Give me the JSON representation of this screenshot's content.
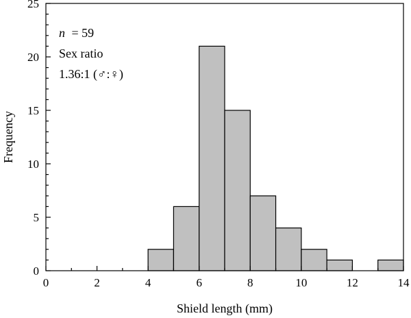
{
  "chart_data": {
    "type": "bar",
    "bins": [
      {
        "x0": 4,
        "x1": 5,
        "count": 2
      },
      {
        "x0": 5,
        "x1": 6,
        "count": 6
      },
      {
        "x0": 6,
        "x1": 7,
        "count": 21
      },
      {
        "x0": 7,
        "x1": 8,
        "count": 15
      },
      {
        "x0": 8,
        "x1": 9,
        "count": 7
      },
      {
        "x0": 9,
        "x1": 10,
        "count": 4
      },
      {
        "x0": 10,
        "x1": 11,
        "count": 2
      },
      {
        "x0": 11,
        "x1": 12,
        "count": 1
      },
      {
        "x0": 13,
        "x1": 14,
        "count": 1
      }
    ],
    "xlabel": "Shield length (mm)",
    "ylabel": "Frequency",
    "xlim": [
      0,
      14
    ],
    "ylim": [
      0,
      25
    ],
    "x_ticks": [
      0,
      2,
      4,
      6,
      8,
      10,
      12,
      14
    ],
    "y_ticks": [
      0,
      5,
      10,
      15,
      20,
      25
    ],
    "grid": false,
    "bar_color": "#c0c0c0",
    "annotations": {
      "n_label": "n",
      "n_value": "= 59",
      "sex_ratio_label": "Sex ratio",
      "sex_ratio_value": "1.36:1 (♂:♀)"
    }
  }
}
